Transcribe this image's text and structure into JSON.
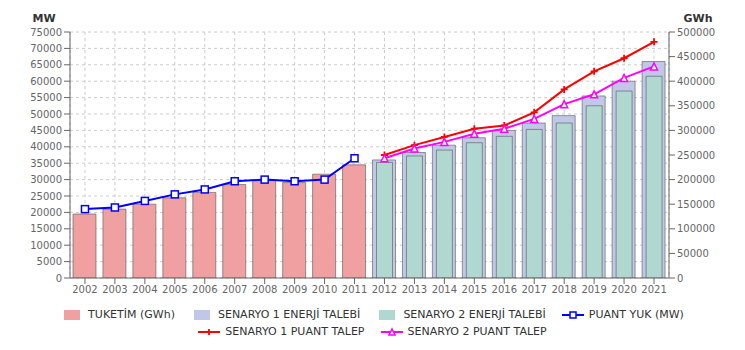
{
  "chart_data": {
    "type": "combo",
    "categories": [
      "2002",
      "2003",
      "2004",
      "2005",
      "2006",
      "2007",
      "2008",
      "2009",
      "2010",
      "2011",
      "2012",
      "2013",
      "2014",
      "2015",
      "2016",
      "2017",
      "2018",
      "2019",
      "2020",
      "2021"
    ],
    "series": [
      {
        "name": "TUKETİM (GWh)",
        "type": "bar",
        "axis": "y2",
        "color": "#f0a0a0",
        "values": [
          130000,
          140000,
          150000,
          163000,
          174000,
          190000,
          198000,
          194000,
          211000,
          230000,
          null,
          null,
          null,
          null,
          null,
          null,
          null,
          null,
          null,
          null
        ]
      },
      {
        "name": "SENARYO 1 ENERJİ TALEBİ",
        "type": "bar",
        "axis": "y2",
        "color": "#c0c8e8",
        "values": [
          null,
          null,
          null,
          null,
          null,
          null,
          null,
          null,
          null,
          null,
          240000,
          255000,
          270000,
          285000,
          300000,
          315000,
          330000,
          370000,
          400000,
          440000
        ]
      },
      {
        "name": "SENARYO 2 ENERJİ TALEBİ",
        "type": "bar",
        "axis": "y2",
        "color": "#b0d8d0",
        "values": [
          null,
          null,
          null,
          null,
          null,
          null,
          null,
          null,
          null,
          null,
          235000,
          248000,
          260000,
          275000,
          288000,
          302000,
          315000,
          350000,
          380000,
          410000
        ]
      },
      {
        "name": "PUANT YUK (MW)",
        "type": "line",
        "color": "blue",
        "marker": "square",
        "values": [
          21000,
          21500,
          23500,
          25500,
          27000,
          29500,
          30000,
          29500,
          30000,
          36500,
          null,
          null,
          null,
          null,
          null,
          null,
          null,
          null,
          null,
          null
        ]
      },
      {
        "name": "SENARYO 1 PUANT TALEP",
        "type": "line",
        "color": "red",
        "marker": "plus",
        "values": [
          null,
          null,
          null,
          null,
          null,
          null,
          null,
          null,
          null,
          null,
          37500,
          40500,
          43000,
          45500,
          46500,
          50500,
          57500,
          63000,
          67000,
          72000
        ]
      },
      {
        "name": "SENARYO 2 PUANT TALEP",
        "type": "line",
        "color": "magenta",
        "marker": "triangle",
        "values": [
          null,
          null,
          null,
          null,
          null,
          null,
          null,
          null,
          null,
          null,
          36500,
          39500,
          41500,
          44000,
          45500,
          48500,
          53000,
          56000,
          61000,
          64500
        ]
      }
    ],
    "ylabel": "MW",
    "y2label": "GWh",
    "ylim": [
      0,
      75000
    ],
    "yticks": [
      0,
      5000,
      10000,
      15000,
      20000,
      25000,
      30000,
      35000,
      40000,
      45000,
      50000,
      55000,
      60000,
      65000,
      70000,
      75000
    ],
    "y2lim": [
      0,
      500000
    ],
    "y2ticks": [
      0,
      50000,
      100000,
      150000,
      200000,
      250000,
      300000,
      350000,
      400000,
      450000,
      500000
    ],
    "grid": true,
    "legend": "bottom"
  }
}
